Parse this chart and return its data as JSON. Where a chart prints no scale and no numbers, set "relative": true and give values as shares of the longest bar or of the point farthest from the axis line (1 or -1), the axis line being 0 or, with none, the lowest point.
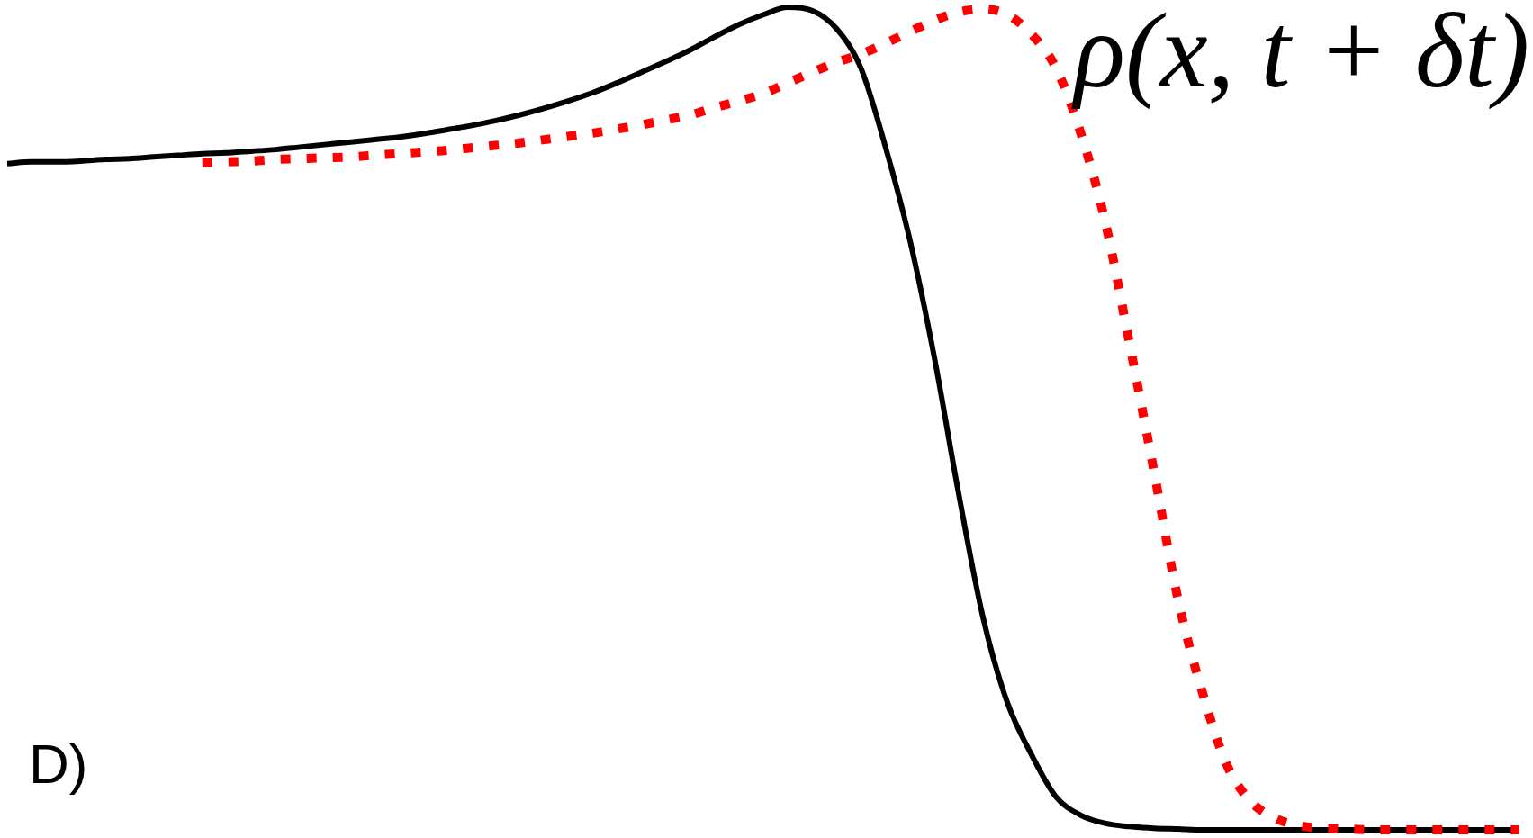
{
  "chart_data": {
    "type": "line",
    "relative": true,
    "tick_labels": false,
    "marker": "none",
    "categories": [
      null,
      null,
      null,
      null,
      null,
      null,
      null,
      null,
      null,
      null,
      null,
      null,
      null,
      null,
      null,
      null,
      null,
      null,
      null,
      null,
      null,
      null,
      null,
      null,
      null,
      null,
      null,
      null,
      null,
      null,
      null,
      null,
      null,
      null,
      null,
      null,
      null,
      null,
      null,
      null,
      null,
      null,
      null,
      null,
      null,
      null,
      null,
      null,
      null,
      null,
      null,
      null,
      null,
      null,
      null,
      null,
      null,
      null,
      null,
      null,
      null,
      null,
      null
    ],
    "series": [
      {
        "color": "#000000",
        "line_style": "solid",
        "values": [
          0.81,
          0.812,
          0.812,
          0.813,
          0.815,
          0.816,
          0.818,
          0.82,
          0.822,
          0.823,
          0.825,
          0.827,
          0.83,
          0.833,
          0.836,
          0.839,
          0.842,
          0.846,
          0.851,
          0.856,
          0.862,
          0.869,
          0.877,
          0.886,
          0.896,
          0.908,
          0.921,
          0.934,
          0.948,
          0.964,
          0.979,
          0.991,
          1.0,
          0.996,
          0.974,
          0.926,
          0.831,
          0.718,
          0.576,
          0.41,
          0.259,
          0.155,
          0.091,
          0.04,
          0.018,
          0.008,
          0.004,
          0.002,
          0.001,
          0,
          0,
          0,
          0,
          0,
          0,
          0,
          0,
          0,
          0,
          0,
          0,
          0,
          0
        ]
      },
      {
        "name": "ρ(x, t + δt)",
        "color": "#ff0000",
        "line_style": "dotted",
        "values": [
          null,
          null,
          null,
          null,
          null,
          null,
          null,
          null,
          0.811,
          0.812,
          0.813,
          0.815,
          0.816,
          0.817,
          0.818,
          0.82,
          0.822,
          0.824,
          0.826,
          0.829,
          0.832,
          0.835,
          0.839,
          0.843,
          0.847,
          0.852,
          0.857,
          0.863,
          0.869,
          0.878,
          0.886,
          0.895,
          0.908,
          0.921,
          0.933,
          0.943,
          0.956,
          0.97,
          0.984,
          0.994,
          0.998,
          0.991,
          0.967,
          0.926,
          0.848,
          0.741,
          0.593,
          0.438,
          0.28,
          0.167,
          0.079,
          0.034,
          0.014,
          0.005,
          0.002,
          0.001,
          0,
          0,
          0,
          0,
          0,
          0,
          0
        ]
      }
    ],
    "annotations": [
      "D)"
    ]
  }
}
